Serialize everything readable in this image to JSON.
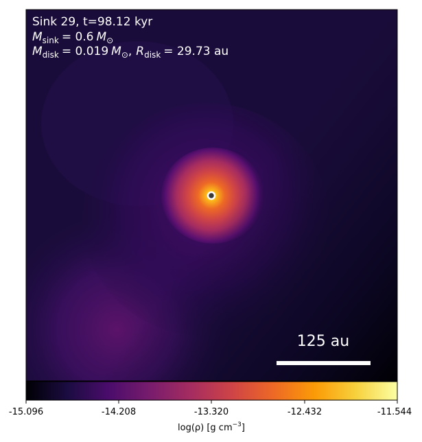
{
  "annotations": {
    "line1": "Sink 29, t=98.12 kyr",
    "msink_sub": "sink",
    "msink_value": "= 0.6",
    "sun_sub": "⊙",
    "mdisk_sub": "disk",
    "mdisk_value": "= 0.019",
    "rdisk_sub": "disk",
    "rdisk_value": "= 29.73 au",
    "symbol_M": "M",
    "symbol_R": "R",
    "comma": ","
  },
  "scale_bar": {
    "label": "125 au"
  },
  "colorbar": {
    "ticks": [
      "-15.096",
      "-14.208",
      "-13.320",
      "-12.432",
      "-11.544"
    ],
    "label_prefix": "log(ρ) [g cm",
    "label_exp": "−3",
    "label_suffix": "]",
    "colormap_stops": [
      "#000004",
      "#1b0c41",
      "#4a0c6b",
      "#781c6d",
      "#a52c60",
      "#cf4446",
      "#ed6925",
      "#fb9b06",
      "#f7d13d",
      "#fcffa4"
    ]
  },
  "image": {
    "colormap": "inferno",
    "background_color": "#1a0c3a",
    "sink_marker_color": "#3a3a3a"
  }
}
